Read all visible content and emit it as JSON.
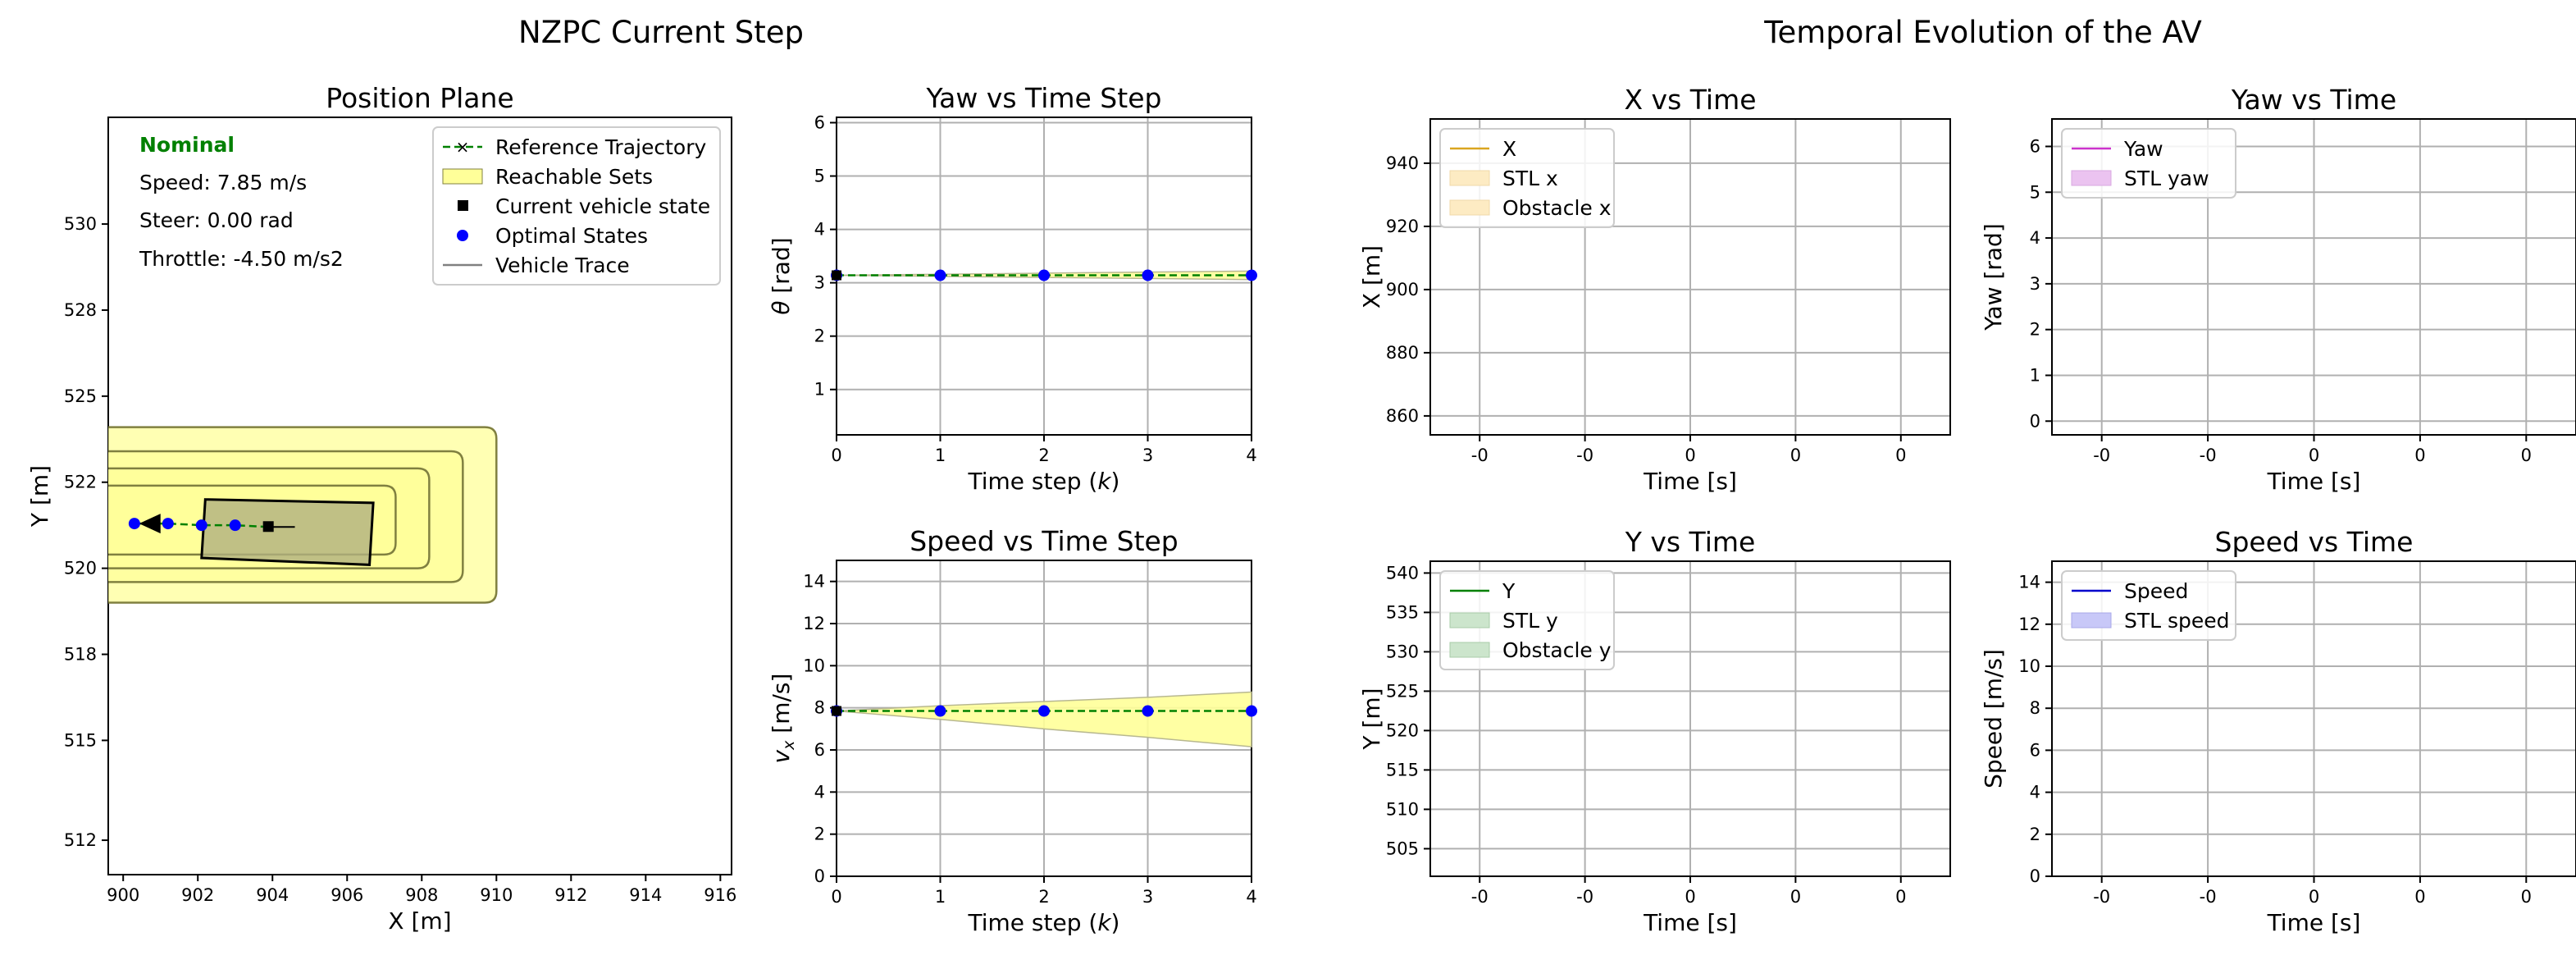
{
  "suptitles": {
    "left": "NZPC Current Step",
    "right": "Temporal Evolution of the AV"
  },
  "colors": {
    "reference": "#008000",
    "reach_fill": "#ffff99",
    "reach_edge": "#808040",
    "vehicle": "#000000",
    "optimal": "#0000ff",
    "trace": "#808080",
    "x_line": "#daa520",
    "x_fill": "#fdebc3",
    "yaw_line": "#cc33cc",
    "yaw_fill": "#ebc3f0",
    "y_line": "#008000",
    "y_fill": "#cce5cc",
    "speed_line": "#0000cc",
    "speed_fill": "#c8c8f8",
    "nominal_text": "#008000"
  },
  "position_plane": {
    "title": "Position Plane",
    "xlabel": "X [m]",
    "ylabel": "Y [m]",
    "xlim": [
      899.6,
      916.3
    ],
    "ylim": [
      511,
      533
    ],
    "xticks": [
      "900",
      "902",
      "904",
      "906",
      "908",
      "910",
      "912",
      "914",
      "916"
    ],
    "yticks": [
      "512",
      "515",
      "518",
      "520",
      "522",
      "525",
      "528",
      "530"
    ],
    "info": {
      "mode": "Nominal",
      "speed": "Speed: 7.85 m/s",
      "steer": "Steer: 0.00 rad",
      "throttle": "Throttle: -4.50 m/s2"
    },
    "legend": [
      "Reference Trajectory",
      "Reachable Sets",
      "Current vehicle state",
      "Optimal States",
      "Vehicle Trace"
    ]
  },
  "yaw_step": {
    "title": "Yaw vs Time Step",
    "xlabel": "Time step (k)",
    "ylabel": "θ [rad]",
    "xlim": [
      0,
      4
    ],
    "ylim": [
      0.15,
      6.1
    ],
    "xticks": [
      "0",
      "1",
      "2",
      "3",
      "4"
    ],
    "yticks": [
      "1",
      "2",
      "3",
      "4",
      "5",
      "6"
    ]
  },
  "speed_step": {
    "title": "Speed vs Time Step",
    "xlabel": "Time step (k)",
    "ylabel": "v_x [m/s]",
    "xlim": [
      0,
      4
    ],
    "ylim": [
      0,
      15
    ],
    "xticks": [
      "0",
      "1",
      "2",
      "3",
      "4"
    ],
    "yticks": [
      "0",
      "2",
      "4",
      "6",
      "8",
      "10",
      "12",
      "14"
    ]
  },
  "x_time": {
    "title": "X vs Time",
    "xlabel": "Time [s]",
    "ylabel": "X [m]",
    "ylim": [
      854,
      954
    ],
    "xticks": [
      "-0",
      "-0",
      "0",
      "0",
      "0"
    ],
    "yticks": [
      "860",
      "880",
      "900",
      "920",
      "940"
    ],
    "legend": [
      "X",
      "STL x",
      "Obstacle x"
    ]
  },
  "yaw_time": {
    "title": "Yaw vs Time",
    "xlabel": "Time [s]",
    "ylabel": "Yaw [rad]",
    "ylim": [
      -0.3,
      6.6
    ],
    "xticks": [
      "-0",
      "-0",
      "0",
      "0",
      "0"
    ],
    "yticks": [
      "0",
      "1",
      "2",
      "3",
      "4",
      "5",
      "6"
    ],
    "legend": [
      "Yaw",
      "STL yaw"
    ]
  },
  "y_time": {
    "title": "Y vs Time",
    "xlabel": "Time [s]",
    "ylabel": "Y [m]",
    "ylim": [
      501.5,
      541.5
    ],
    "xticks": [
      "-0",
      "-0",
      "0",
      "0",
      "0"
    ],
    "yticks": [
      "505",
      "510",
      "515",
      "520",
      "525",
      "530",
      "535",
      "540"
    ],
    "legend": [
      "Y",
      "STL y",
      "Obstacle y"
    ]
  },
  "speed_time": {
    "title": "Speed vs Time",
    "xlabel": "Time [s]",
    "ylabel": "Speed [m/s]",
    "ylim": [
      0,
      15
    ],
    "xticks": [
      "-0",
      "-0",
      "0",
      "0",
      "0"
    ],
    "yticks": [
      "0",
      "2",
      "4",
      "6",
      "8",
      "10",
      "12",
      "14"
    ],
    "legend": [
      "Speed",
      "STL speed"
    ]
  },
  "chart_data": [
    {
      "type": "line",
      "panel": "position_plane",
      "series": [
        {
          "name": "Reference Trajectory",
          "x": [
            900.3,
            901.2,
            902.1,
            903.0,
            903.9
          ],
          "y": [
            521.2,
            521.2,
            521.15,
            521.15,
            521.1
          ]
        },
        {
          "name": "Optimal States",
          "x": [
            900.3,
            901.2,
            902.1,
            903.0
          ],
          "y": [
            521.2,
            521.2,
            521.15,
            521.15
          ]
        },
        {
          "name": "Current vehicle state",
          "x": [
            903.9
          ],
          "y": [
            521.1
          ]
        },
        {
          "name": "Reachable Sets",
          "note": "nested polygons",
          "x_left": 899.6,
          "x_right": [
            910.0,
            909.1,
            908.2,
            907.3
          ],
          "y_bottom": [
            518.9,
            519.5,
            519.9,
            520.3
          ],
          "y_top": [
            524.0,
            523.3,
            522.8,
            522.3
          ]
        }
      ],
      "vehicle_box": {
        "x": [
          902.2,
          906.7,
          906.6,
          902.1
        ],
        "y": [
          521.9,
          521.8,
          520.0,
          520.2
        ]
      }
    },
    {
      "type": "line",
      "panel": "yaw_step",
      "x": [
        0,
        1,
        2,
        3,
        4
      ],
      "series": [
        {
          "name": "Reference Trajectory",
          "values": [
            3.14,
            3.14,
            3.14,
            3.14,
            3.14
          ]
        },
        {
          "name": "Optimal States",
          "values": [
            3.14,
            3.14,
            3.14,
            3.14,
            3.14
          ]
        },
        {
          "name": "Reachable Sets",
          "upper": [
            3.14,
            3.16,
            3.18,
            3.2,
            3.22
          ],
          "lower": [
            3.14,
            3.12,
            3.1,
            3.08,
            3.06
          ]
        }
      ]
    },
    {
      "type": "line",
      "panel": "speed_step",
      "x": [
        0,
        1,
        2,
        3,
        4
      ],
      "series": [
        {
          "name": "Reference Trajectory",
          "values": [
            7.85,
            7.85,
            7.85,
            7.85,
            7.85
          ]
        },
        {
          "name": "Optimal States",
          "values": [
            7.85,
            7.85,
            7.85,
            7.85,
            7.85
          ]
        },
        {
          "name": "Reachable Sets",
          "upper": [
            7.85,
            8.1,
            8.3,
            8.5,
            8.75
          ],
          "lower": [
            7.85,
            7.45,
            7.0,
            6.6,
            6.15
          ]
        }
      ]
    }
  ]
}
